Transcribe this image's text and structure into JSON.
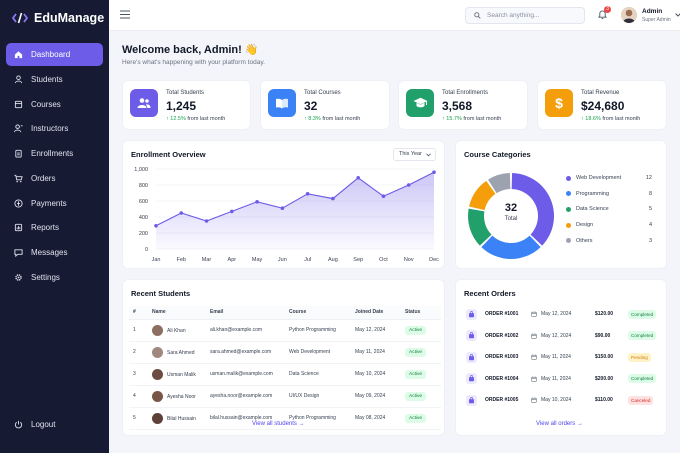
{
  "app": {
    "name": "EduManage"
  },
  "colors": {
    "sidebar": "#161b33",
    "accent": "#6c5ce7",
    "green": "#16a34a",
    "orange": "#f59e0b",
    "red": "#ef4444"
  },
  "sidebar": {
    "items": [
      {
        "label": "Dashboard",
        "icon": "home-icon",
        "active": true
      },
      {
        "label": "Students",
        "icon": "user-icon"
      },
      {
        "label": "Courses",
        "icon": "book-icon"
      },
      {
        "label": "Instructors",
        "icon": "instructor-icon"
      },
      {
        "label": "Enrollments",
        "icon": "clipboard-icon"
      },
      {
        "label": "Orders",
        "icon": "cart-icon"
      },
      {
        "label": "Payments",
        "icon": "dollar-circle-icon"
      },
      {
        "label": "Reports",
        "icon": "report-icon"
      },
      {
        "label": "Messages",
        "icon": "chat-icon"
      },
      {
        "label": "Settings",
        "icon": "gear-icon"
      }
    ],
    "logout": "Logout"
  },
  "topbar": {
    "search_placeholder": "Search anything...",
    "notification_count": "3",
    "user_name": "Admin",
    "user_role": "Super Admin"
  },
  "header": {
    "welcome": "Welcome back, Admin! 👋",
    "subtitle": "Here's what's happening with your platform today."
  },
  "stats": [
    {
      "label": "Total Students",
      "value": "1,245",
      "change": "↑ 12.5%",
      "change_suffix": "from last month",
      "icon": "users-icon",
      "color": "#6c5ce7"
    },
    {
      "label": "Total Courses",
      "value": "32",
      "change": "↑ 8.3%",
      "change_suffix": "from last month",
      "icon": "open-book-icon",
      "color": "#3b82f6"
    },
    {
      "label": "Total Enrollments",
      "value": "3,568",
      "change": "↑ 15.7%",
      "change_suffix": "from last month",
      "icon": "graduation-cap-icon",
      "color": "#22a06b"
    },
    {
      "label": "Total Revenue",
      "value": "$24,680",
      "change": "↑ 18.6%",
      "change_suffix": "from last month",
      "icon": "dollar-icon",
      "color": "#f59e0b"
    }
  ],
  "enrollment": {
    "title": "Enrollment Overview",
    "period": "This Year",
    "chart_data": {
      "type": "area",
      "categories": [
        "Jan",
        "Feb",
        "Mar",
        "Apr",
        "May",
        "Jun",
        "Jul",
        "Aug",
        "Sep",
        "Oct",
        "Nov",
        "Dec"
      ],
      "values": [
        290,
        450,
        350,
        470,
        590,
        510,
        690,
        630,
        890,
        660,
        800,
        960
      ],
      "ylim": [
        0,
        1000
      ],
      "yticks": [
        "0",
        "200",
        "400",
        "600",
        "800",
        "1,000"
      ],
      "grid": true,
      "color": "#6c5ce7"
    }
  },
  "categories": {
    "title": "Course Categories",
    "total_value": "32",
    "total_label": "Total",
    "chart_data": {
      "type": "pie",
      "labels": [
        "Web Development",
        "Programming",
        "Data Science",
        "Design",
        "Others"
      ],
      "values": [
        12,
        8,
        5,
        4,
        3
      ],
      "colors": [
        "#6c5ce7",
        "#3b82f6",
        "#22a06b",
        "#f59e0b",
        "#9ca3af"
      ]
    }
  },
  "recent_students": {
    "title": "Recent Students",
    "columns": [
      "#",
      "Name",
      "Email",
      "Course",
      "Joined Date",
      "Status"
    ],
    "rows": [
      {
        "n": "1",
        "name": "Ali Khan",
        "email": "ali.khan@example.com",
        "course": "Python Programming",
        "date": "May 12, 2024",
        "status": "Active",
        "color": "#8d6e63"
      },
      {
        "n": "2",
        "name": "Sara Ahmed",
        "email": "sara.ahmed@example.com",
        "course": "Web Development",
        "date": "May 11, 2024",
        "status": "Active",
        "color": "#a1887f"
      },
      {
        "n": "3",
        "name": "Usman Malik",
        "email": "usman.malik@example.com",
        "course": "Data Science",
        "date": "May 10, 2024",
        "status": "Active",
        "color": "#6d4c41"
      },
      {
        "n": "4",
        "name": "Ayesha Noor",
        "email": "ayesha.noor@example.com",
        "course": "UI/UX Design",
        "date": "May 09, 2024",
        "status": "Active",
        "color": "#795548"
      },
      {
        "n": "5",
        "name": "Bilal Hussain",
        "email": "bilal.hussain@example.com",
        "course": "Python Programming",
        "date": "May 08, 2024",
        "status": "Active",
        "color": "#5d4037"
      }
    ],
    "view_all": "View all students →"
  },
  "recent_orders": {
    "title": "Recent Orders",
    "rows": [
      {
        "id": "ORDER #1001",
        "date": "May 12, 2024",
        "amount": "$120.00",
        "status": "Completed",
        "bg": "#dcfce7",
        "fg": "#15803d"
      },
      {
        "id": "ORDER #1002",
        "date": "May 12, 2024",
        "amount": "$90.00",
        "status": "Completed",
        "bg": "#dcfce7",
        "fg": "#15803d"
      },
      {
        "id": "ORDER #1003",
        "date": "May 11, 2024",
        "amount": "$150.00",
        "status": "Pending",
        "bg": "#fef3c7",
        "fg": "#d97706"
      },
      {
        "id": "ORDER #1004",
        "date": "May 11, 2024",
        "amount": "$200.00",
        "status": "Completed",
        "bg": "#dcfce7",
        "fg": "#15803d"
      },
      {
        "id": "ORDER #1005",
        "date": "May 10, 2024",
        "amount": "$110.00",
        "status": "Canceled",
        "bg": "#fee2e2",
        "fg": "#dc2626"
      }
    ],
    "view_all": "View all orders →"
  }
}
